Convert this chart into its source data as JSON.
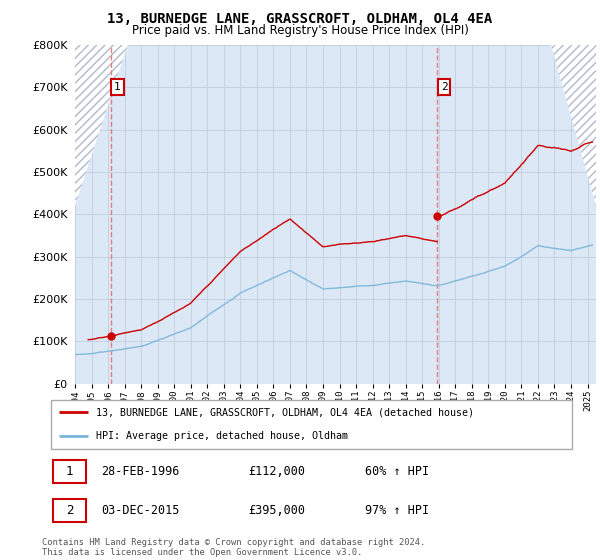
{
  "title": "13, BURNEDGE LANE, GRASSCROFT, OLDHAM, OL4 4EA",
  "subtitle": "Price paid vs. HM Land Registry's House Price Index (HPI)",
  "sale1_date": 1996.16,
  "sale1_price": 112000,
  "sale1_label": "1",
  "sale2_date": 2015.92,
  "sale2_price": 395000,
  "sale2_label": "2",
  "ylim_min": 0,
  "ylim_max": 800000,
  "xlim_min": 1994.0,
  "xlim_max": 2025.5,
  "hpi_color": "#7ab4d8",
  "property_color": "#cc0000",
  "dashed_line_color": "#e87070",
  "legend_label_property": "13, BURNEDGE LANE, GRASSCROFT, OLDHAM, OL4 4EA (detached house)",
  "legend_label_hpi": "HPI: Average price, detached house, Oldham",
  "table_row1": [
    "1",
    "28-FEB-1996",
    "£112,000",
    "60% ↑ HPI"
  ],
  "table_row2": [
    "2",
    "03-DEC-2015",
    "£395,000",
    "97% ↑ HPI"
  ],
  "footnote": "Contains HM Land Registry data © Crown copyright and database right 2024.\nThis data is licensed under the Open Government Licence v3.0.",
  "plot_bg_color": "#dce8f5",
  "grid_color": "#c0cfe0",
  "hatch_color": "#b0b8cc"
}
